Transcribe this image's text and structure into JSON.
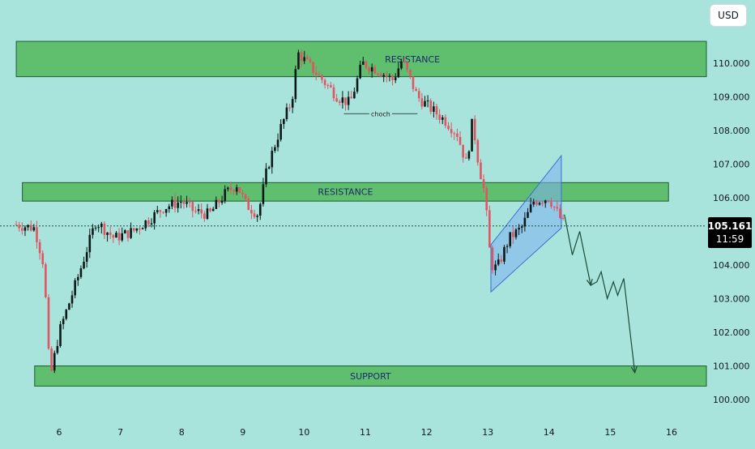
{
  "toolbar": {
    "currency_label": "USD"
  },
  "last_price": {
    "value": "105.161",
    "countdown": "11:59"
  },
  "colors": {
    "background": "#a8e4dc",
    "zone_fill": "#5fbf6e",
    "zone_border": "#1e5c32",
    "candle_up": "#0b1a18",
    "candle_down": "#e05561",
    "channel_fill": "#7fb0f0",
    "projection": "#1c4a3a"
  },
  "chart_data": {
    "type": "candlestick",
    "x_ticks": [
      "6",
      "7",
      "8",
      "9",
      "10",
      "11",
      "12",
      "13",
      "14",
      "15",
      "16"
    ],
    "y_ticks": [
      "100.000",
      "101.000",
      "102.000",
      "103.000",
      "104.000",
      "105.000",
      "106.000",
      "107.000",
      "108.000",
      "109.000",
      "110.000"
    ],
    "ylim": [
      99.65,
      111.15
    ],
    "current_price": 105.161,
    "zones": [
      {
        "label": "RESISTANCE",
        "x_from": 5.3,
        "x_to": 16.6,
        "y_from": 109.6,
        "y_to": 110.65
      },
      {
        "label": "RESISTANCE",
        "x_from": 5.4,
        "x_to": 15.95,
        "y_from": 105.9,
        "y_to": 106.45
      },
      {
        "label": "SUPPORT",
        "x_from": 5.6,
        "x_to": 16.6,
        "y_from": 100.4,
        "y_to": 101.0
      }
    ],
    "annotations": [
      {
        "text": "choch",
        "x_from": 10.65,
        "x_to": 11.85,
        "y": 108.5
      }
    ],
    "channel": {
      "x_from": 13.05,
      "x_to": 14.2,
      "lower_start": 103.2,
      "lower_end": 105.1,
      "upper_start": 104.6,
      "upper_end": 107.25
    },
    "projection_path": [
      [
        14.25,
        105.5
      ],
      [
        14.38,
        104.3
      ],
      [
        14.5,
        105.0
      ],
      [
        14.68,
        103.4
      ],
      [
        14.78,
        103.5
      ],
      [
        14.85,
        103.8
      ],
      [
        14.95,
        103.0
      ],
      [
        15.05,
        103.5
      ],
      [
        15.12,
        103.1
      ],
      [
        15.22,
        103.6
      ],
      [
        15.4,
        100.8
      ]
    ],
    "candles_waypoints": [
      [
        5.3,
        105.2
      ],
      [
        5.6,
        105.1
      ],
      [
        5.75,
        104.0
      ],
      [
        5.85,
        100.6
      ],
      [
        6.0,
        102.0
      ],
      [
        6.3,
        103.6
      ],
      [
        6.6,
        105.3
      ],
      [
        6.9,
        104.8
      ],
      [
        7.2,
        105.0
      ],
      [
        7.5,
        105.4
      ],
      [
        7.7,
        105.7
      ],
      [
        8.0,
        105.9
      ],
      [
        8.2,
        105.6
      ],
      [
        8.45,
        105.5
      ],
      [
        8.7,
        106.1
      ],
      [
        8.9,
        106.4
      ],
      [
        9.05,
        105.8
      ],
      [
        9.25,
        105.5
      ],
      [
        9.4,
        106.9
      ],
      [
        9.6,
        108.0
      ],
      [
        9.8,
        108.9
      ],
      [
        9.9,
        110.3
      ],
      [
        10.05,
        110.0
      ],
      [
        10.25,
        109.6
      ],
      [
        10.55,
        109.0
      ],
      [
        10.75,
        108.8
      ],
      [
        10.95,
        110.0
      ],
      [
        11.2,
        109.8
      ],
      [
        11.45,
        109.5
      ],
      [
        11.6,
        110.1
      ],
      [
        11.85,
        109.0
      ],
      [
        12.1,
        108.6
      ],
      [
        12.3,
        108.3
      ],
      [
        12.5,
        107.9
      ],
      [
        12.65,
        107.0
      ],
      [
        12.75,
        108.3
      ],
      [
        12.85,
        107.0
      ],
      [
        12.95,
        106.1
      ],
      [
        13.05,
        104.0
      ],
      [
        13.15,
        103.9
      ],
      [
        13.35,
        104.8
      ],
      [
        13.55,
        105.1
      ],
      [
        13.75,
        105.9
      ],
      [
        14.0,
        106.0
      ],
      [
        14.15,
        105.5
      ],
      [
        14.25,
        105.16
      ]
    ]
  }
}
